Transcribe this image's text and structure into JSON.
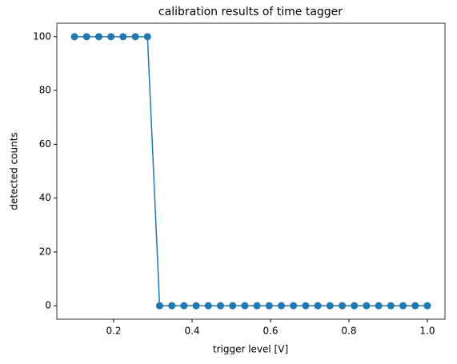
{
  "chart_data": {
    "type": "line",
    "title": "calibration results of time tagger",
    "x_label": "trigger level [V]",
    "y_label": "detected counts",
    "x": [
      0.1,
      0.131,
      0.1621,
      0.1931,
      0.2241,
      0.2552,
      0.2862,
      0.3172,
      0.3483,
      0.3793,
      0.4103,
      0.4414,
      0.4724,
      0.5034,
      0.5345,
      0.5655,
      0.5966,
      0.6276,
      0.6586,
      0.6897,
      0.7207,
      0.7517,
      0.7828,
      0.8138,
      0.8448,
      0.8759,
      0.9069,
      0.9379,
      0.969,
      1.0
    ],
    "series": [
      {
        "color": "#1f77b4",
        "values": [
          100,
          100,
          100,
          100,
          100,
          100,
          100,
          0,
          0,
          0,
          0,
          0,
          0,
          0,
          0,
          0,
          0,
          0,
          0,
          0,
          0,
          0,
          0,
          0,
          0,
          0,
          0,
          0,
          0,
          0
        ]
      }
    ],
    "xlim": [
      0.055,
      1.045
    ],
    "ylim": [
      -5,
      105
    ],
    "xticks": [
      0.2,
      0.4,
      0.6,
      0.8,
      {
        "value": 1.0,
        "label": "1.0"
      }
    ],
    "yticks": [
      0,
      20,
      40,
      60,
      80,
      100
    ],
    "grid": false
  }
}
